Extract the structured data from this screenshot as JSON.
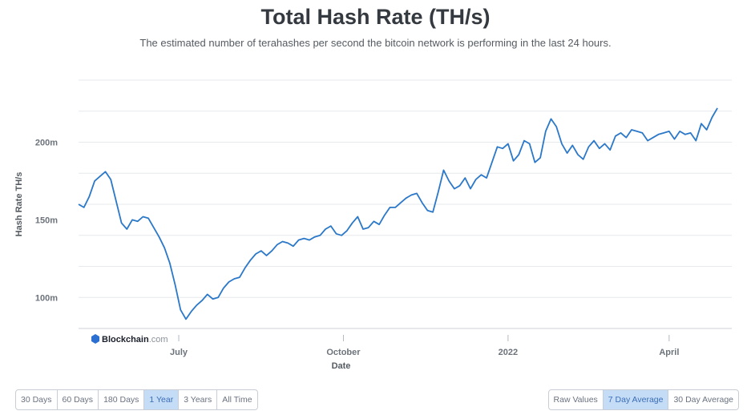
{
  "chart_data": {
    "type": "line",
    "title": "Total Hash Rate (TH/s)",
    "subtitle": "The estimated number of terahashes per second the bitcoin network is performing in the last 24 hours.",
    "ylabel": "Hash Rate TH/s",
    "xlabel": "Date",
    "y_ticks": [
      {
        "value": 100000000,
        "label": "100m"
      },
      {
        "value": 150000000,
        "label": "150m"
      },
      {
        "value": 200000000,
        "label": "200m"
      }
    ],
    "x_ticks": [
      {
        "date": "2021-07-01",
        "label": "July"
      },
      {
        "date": "2021-10-01",
        "label": "October"
      },
      {
        "date": "2022-01-01",
        "label": "2022"
      },
      {
        "date": "2022-04-01",
        "label": "April"
      }
    ],
    "ylim": [
      80000000,
      240000000
    ],
    "xlim": [
      "2021-05-06",
      "2022-05-06"
    ],
    "grid": "horizontal",
    "line_color": "#2b78c9",
    "series": [
      {
        "points": [
          [
            "2021-05-06",
            160000000
          ],
          [
            "2021-05-09",
            158000000
          ],
          [
            "2021-05-12",
            165000000
          ],
          [
            "2021-05-15",
            175000000
          ],
          [
            "2021-05-18",
            178000000
          ],
          [
            "2021-05-21",
            181000000
          ],
          [
            "2021-05-24",
            176000000
          ],
          [
            "2021-05-27",
            162000000
          ],
          [
            "2021-05-30",
            148000000
          ],
          [
            "2021-06-02",
            144000000
          ],
          [
            "2021-06-05",
            150000000
          ],
          [
            "2021-06-08",
            149000000
          ],
          [
            "2021-06-11",
            152000000
          ],
          [
            "2021-06-14",
            151000000
          ],
          [
            "2021-06-17",
            145000000
          ],
          [
            "2021-06-20",
            139000000
          ],
          [
            "2021-06-23",
            132000000
          ],
          [
            "2021-06-26",
            122000000
          ],
          [
            "2021-06-29",
            108000000
          ],
          [
            "2021-07-02",
            92000000
          ],
          [
            "2021-07-05",
            86000000
          ],
          [
            "2021-07-08",
            91000000
          ],
          [
            "2021-07-11",
            95000000
          ],
          [
            "2021-07-14",
            98000000
          ],
          [
            "2021-07-17",
            102000000
          ],
          [
            "2021-07-20",
            99000000
          ],
          [
            "2021-07-23",
            100000000
          ],
          [
            "2021-07-26",
            106000000
          ],
          [
            "2021-07-29",
            110000000
          ],
          [
            "2021-08-01",
            112000000
          ],
          [
            "2021-08-04",
            113000000
          ],
          [
            "2021-08-07",
            119000000
          ],
          [
            "2021-08-10",
            124000000
          ],
          [
            "2021-08-13",
            128000000
          ],
          [
            "2021-08-16",
            130000000
          ],
          [
            "2021-08-19",
            127000000
          ],
          [
            "2021-08-22",
            130000000
          ],
          [
            "2021-08-25",
            134000000
          ],
          [
            "2021-08-28",
            136000000
          ],
          [
            "2021-08-31",
            135000000
          ],
          [
            "2021-09-03",
            133000000
          ],
          [
            "2021-09-06",
            137000000
          ],
          [
            "2021-09-09",
            138000000
          ],
          [
            "2021-09-12",
            137000000
          ],
          [
            "2021-09-15",
            139000000
          ],
          [
            "2021-09-18",
            140000000
          ],
          [
            "2021-09-21",
            144000000
          ],
          [
            "2021-09-24",
            146000000
          ],
          [
            "2021-09-27",
            141000000
          ],
          [
            "2021-09-30",
            140000000
          ],
          [
            "2021-10-03",
            143000000
          ],
          [
            "2021-10-06",
            148000000
          ],
          [
            "2021-10-09",
            152000000
          ],
          [
            "2021-10-12",
            144000000
          ],
          [
            "2021-10-15",
            145000000
          ],
          [
            "2021-10-18",
            149000000
          ],
          [
            "2021-10-21",
            147000000
          ],
          [
            "2021-10-24",
            153000000
          ],
          [
            "2021-10-27",
            158000000
          ],
          [
            "2021-10-30",
            158000000
          ],
          [
            "2021-11-02",
            161000000
          ],
          [
            "2021-11-05",
            164000000
          ],
          [
            "2021-11-08",
            166000000
          ],
          [
            "2021-11-11",
            167000000
          ],
          [
            "2021-11-14",
            161000000
          ],
          [
            "2021-11-17",
            156000000
          ],
          [
            "2021-11-20",
            155000000
          ],
          [
            "2021-11-23",
            168000000
          ],
          [
            "2021-11-26",
            182000000
          ],
          [
            "2021-11-29",
            175000000
          ],
          [
            "2021-12-02",
            170000000
          ],
          [
            "2021-12-05",
            172000000
          ],
          [
            "2021-12-08",
            177000000
          ],
          [
            "2021-12-11",
            170000000
          ],
          [
            "2021-12-14",
            176000000
          ],
          [
            "2021-12-17",
            179000000
          ],
          [
            "2021-12-20",
            177000000
          ],
          [
            "2021-12-23",
            187000000
          ],
          [
            "2021-12-26",
            197000000
          ],
          [
            "2021-12-29",
            196000000
          ],
          [
            "2022-01-01",
            199000000
          ],
          [
            "2022-01-04",
            188000000
          ],
          [
            "2022-01-07",
            192000000
          ],
          [
            "2022-01-10",
            201000000
          ],
          [
            "2022-01-13",
            199000000
          ],
          [
            "2022-01-16",
            187000000
          ],
          [
            "2022-01-19",
            190000000
          ],
          [
            "2022-01-22",
            207000000
          ],
          [
            "2022-01-25",
            215000000
          ],
          [
            "2022-01-28",
            210000000
          ],
          [
            "2022-01-31",
            199000000
          ],
          [
            "2022-02-03",
            193000000
          ],
          [
            "2022-02-06",
            198000000
          ],
          [
            "2022-02-09",
            192000000
          ],
          [
            "2022-02-12",
            189000000
          ],
          [
            "2022-02-15",
            197000000
          ],
          [
            "2022-02-18",
            201000000
          ],
          [
            "2022-02-21",
            196000000
          ],
          [
            "2022-02-24",
            199000000
          ],
          [
            "2022-02-27",
            195000000
          ],
          [
            "2022-03-02",
            204000000
          ],
          [
            "2022-03-05",
            206000000
          ],
          [
            "2022-03-08",
            203000000
          ],
          [
            "2022-03-11",
            208000000
          ],
          [
            "2022-03-14",
            207000000
          ],
          [
            "2022-03-17",
            206000000
          ],
          [
            "2022-03-20",
            201000000
          ],
          [
            "2022-03-23",
            203000000
          ],
          [
            "2022-03-26",
            205000000
          ],
          [
            "2022-03-29",
            206000000
          ],
          [
            "2022-04-01",
            207000000
          ],
          [
            "2022-04-04",
            202000000
          ],
          [
            "2022-04-07",
            207000000
          ],
          [
            "2022-04-10",
            205000000
          ],
          [
            "2022-04-13",
            206000000
          ],
          [
            "2022-04-16",
            201000000
          ],
          [
            "2022-04-19",
            212000000
          ],
          [
            "2022-04-22",
            208000000
          ],
          [
            "2022-04-25",
            216000000
          ],
          [
            "2022-04-28",
            222000000
          ]
        ]
      }
    ]
  },
  "branding": {
    "logo_text": "Blockchain",
    "logo_suffix": ".com",
    "logo_icon": "blockchain-cube-icon"
  },
  "time_range": {
    "options": [
      "30 Days",
      "60 Days",
      "180 Days",
      "1 Year",
      "3 Years",
      "All Time"
    ],
    "selected": "1 Year"
  },
  "value_mode": {
    "options": [
      "Raw Values",
      "7 Day Average",
      "30 Day Average"
    ],
    "selected": "7 Day Average"
  },
  "colors": {
    "accent_selected_bg": "#c5dcf7",
    "accent_selected_text": "#3b6fb6",
    "gridline": "#e6e9ee"
  }
}
